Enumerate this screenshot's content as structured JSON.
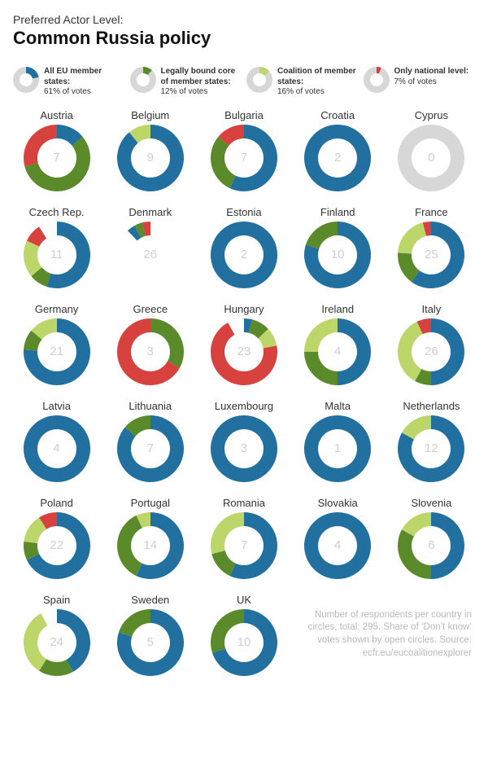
{
  "pretitle": "Preferred Actor Level:",
  "title": "Common Russia policy",
  "colors": {
    "all_eu": "#2170a0",
    "core": "#5a8a2a",
    "coalition": "#bcd66a",
    "national": "#d8423e",
    "gap": "#d7d7d7",
    "legend_grey": "#d7d7d7",
    "center_text": "#cfcfcf"
  },
  "donut": {
    "size": 82,
    "thickness": 17,
    "start_angle_deg": 0,
    "legend_size": 32,
    "legend_thickness": 8
  },
  "legend": [
    {
      "key": "all_eu",
      "label_html": "<b>All EU member states:</b><br>61% of votes",
      "slice": 0.22
    },
    {
      "key": "core",
      "label_html": "<b>Legally bound core of member states:</b><br>12% of votes",
      "slice": 0.12
    },
    {
      "key": "coalition",
      "label_html": "<b>Coalition of member states:</b><br>16% of votes",
      "slice": 0.14
    },
    {
      "key": "national",
      "label_html": "<b>Only national level:</b><br>7% of votes",
      "slice": 0.06
    }
  ],
  "countries": [
    {
      "name": "Austria",
      "n": 7,
      "segments": [
        {
          "k": "all_eu",
          "v": 0.14
        },
        {
          "k": "core",
          "v": 0.57
        },
        {
          "k": "national",
          "v": 0.29
        }
      ],
      "gap": 0
    },
    {
      "name": "Belgium",
      "n": 9,
      "segments": [
        {
          "k": "all_eu",
          "v": 0.89
        },
        {
          "k": "coalition",
          "v": 0.11
        }
      ],
      "gap": 0
    },
    {
      "name": "Bulgaria",
      "n": 7,
      "segments": [
        {
          "k": "all_eu",
          "v": 0.57
        },
        {
          "k": "core",
          "v": 0.29
        },
        {
          "k": "national",
          "v": 0.14
        }
      ],
      "gap": 0
    },
    {
      "name": "Croatia",
      "n": 2,
      "segments": [
        {
          "k": "all_eu",
          "v": 1.0
        }
      ],
      "gap": 0
    },
    {
      "name": "Cyprus",
      "n": 0,
      "segments": [],
      "gap": 1.0
    },
    {
      "name": "Czech Rep.",
      "n": 11,
      "segments": [
        {
          "k": "all_eu",
          "v": 0.55
        },
        {
          "k": "core",
          "v": 0.09
        },
        {
          "k": "coalition",
          "v": 0.18
        },
        {
          "k": "national",
          "v": 0.09
        }
      ],
      "gap": 0.09
    },
    {
      "name": "Denmark",
      "n": 26,
      "segments": [
        {
          "k": "all_eu",
          "v": 0.04
        },
        {
          "k": "core",
          "v": 0.04
        },
        {
          "k": "national",
          "v": 0.04
        }
      ],
      "gap": 0.88,
      "gap_first": true
    },
    {
      "name": "Estonia",
      "n": 2,
      "segments": [
        {
          "k": "all_eu",
          "v": 1.0
        }
      ],
      "gap": 0
    },
    {
      "name": "Finland",
      "n": 10,
      "segments": [
        {
          "k": "all_eu",
          "v": 0.8
        },
        {
          "k": "core",
          "v": 0.2
        }
      ],
      "gap": 0
    },
    {
      "name": "France",
      "n": 25,
      "segments": [
        {
          "k": "all_eu",
          "v": 0.6
        },
        {
          "k": "core",
          "v": 0.16
        },
        {
          "k": "coalition",
          "v": 0.2
        },
        {
          "k": "national",
          "v": 0.04
        }
      ],
      "gap": 0
    },
    {
      "name": "Germany",
      "n": 21,
      "segments": [
        {
          "k": "all_eu",
          "v": 0.76
        },
        {
          "k": "core",
          "v": 0.1
        },
        {
          "k": "coalition",
          "v": 0.14
        }
      ],
      "gap": 0
    },
    {
      "name": "Greece",
      "n": 3,
      "segments": [
        {
          "k": "core",
          "v": 0.33
        },
        {
          "k": "national",
          "v": 0.67
        }
      ],
      "gap": 0
    },
    {
      "name": "Hungary",
      "n": 23,
      "segments": [
        {
          "k": "all_eu",
          "v": 0.04
        },
        {
          "k": "core",
          "v": 0.09
        },
        {
          "k": "coalition",
          "v": 0.09
        },
        {
          "k": "national",
          "v": 0.7
        }
      ],
      "gap": 0.08
    },
    {
      "name": "Ireland",
      "n": 4,
      "segments": [
        {
          "k": "all_eu",
          "v": 0.5
        },
        {
          "k": "core",
          "v": 0.25
        },
        {
          "k": "coalition",
          "v": 0.25
        }
      ],
      "gap": 0
    },
    {
      "name": "Italy",
      "n": 26,
      "segments": [
        {
          "k": "all_eu",
          "v": 0.5
        },
        {
          "k": "core",
          "v": 0.08
        },
        {
          "k": "coalition",
          "v": 0.35
        },
        {
          "k": "national",
          "v": 0.07
        }
      ],
      "gap": 0
    },
    {
      "name": "Latvia",
      "n": 4,
      "segments": [
        {
          "k": "all_eu",
          "v": 1.0
        }
      ],
      "gap": 0
    },
    {
      "name": "Lithuania",
      "n": 7,
      "segments": [
        {
          "k": "all_eu",
          "v": 0.86
        },
        {
          "k": "core",
          "v": 0.14
        }
      ],
      "gap": 0
    },
    {
      "name": "Luxembourg",
      "n": 3,
      "segments": [
        {
          "k": "all_eu",
          "v": 1.0
        }
      ],
      "gap": 0
    },
    {
      "name": "Malta",
      "n": 1,
      "segments": [
        {
          "k": "all_eu",
          "v": 1.0
        }
      ],
      "gap": 0
    },
    {
      "name": "Netherlands",
      "n": 12,
      "segments": [
        {
          "k": "all_eu",
          "v": 0.83
        },
        {
          "k": "coalition",
          "v": 0.17
        }
      ],
      "gap": 0
    },
    {
      "name": "Poland",
      "n": 22,
      "segments": [
        {
          "k": "all_eu",
          "v": 0.68
        },
        {
          "k": "core",
          "v": 0.09
        },
        {
          "k": "coalition",
          "v": 0.14
        },
        {
          "k": "national",
          "v": 0.09
        }
      ],
      "gap": 0
    },
    {
      "name": "Portugal",
      "n": 14,
      "segments": [
        {
          "k": "all_eu",
          "v": 0.57
        },
        {
          "k": "core",
          "v": 0.36
        },
        {
          "k": "coalition",
          "v": 0.07
        }
      ],
      "gap": 0
    },
    {
      "name": "Romania",
      "n": 7,
      "segments": [
        {
          "k": "all_eu",
          "v": 0.57
        },
        {
          "k": "core",
          "v": 0.14
        },
        {
          "k": "coalition",
          "v": 0.29
        }
      ],
      "gap": 0
    },
    {
      "name": "Slovakia",
      "n": 4,
      "segments": [
        {
          "k": "all_eu",
          "v": 1.0
        }
      ],
      "gap": 0
    },
    {
      "name": "Slovenia",
      "n": 6,
      "segments": [
        {
          "k": "all_eu",
          "v": 0.5
        },
        {
          "k": "core",
          "v": 0.33
        },
        {
          "k": "coalition",
          "v": 0.17
        }
      ],
      "gap": 0
    },
    {
      "name": "Spain",
      "n": 24,
      "segments": [
        {
          "k": "all_eu",
          "v": 0.42
        },
        {
          "k": "core",
          "v": 0.17
        },
        {
          "k": "coalition",
          "v": 0.33
        }
      ],
      "gap": 0.08
    },
    {
      "name": "Sweden",
      "n": 5,
      "segments": [
        {
          "k": "all_eu",
          "v": 0.8
        },
        {
          "k": "core",
          "v": 0.2
        }
      ],
      "gap": 0
    },
    {
      "name": "UK",
      "n": 10,
      "segments": [
        {
          "k": "all_eu",
          "v": 0.7
        },
        {
          "k": "core",
          "v": 0.3
        }
      ],
      "gap": 0
    }
  ],
  "footnote": "Number of respondents per country in circles, total: 295. Share of ‘Don’t know’ votes shown by open circles. Source: ecfr.eu/eucoalitionexplorer"
}
